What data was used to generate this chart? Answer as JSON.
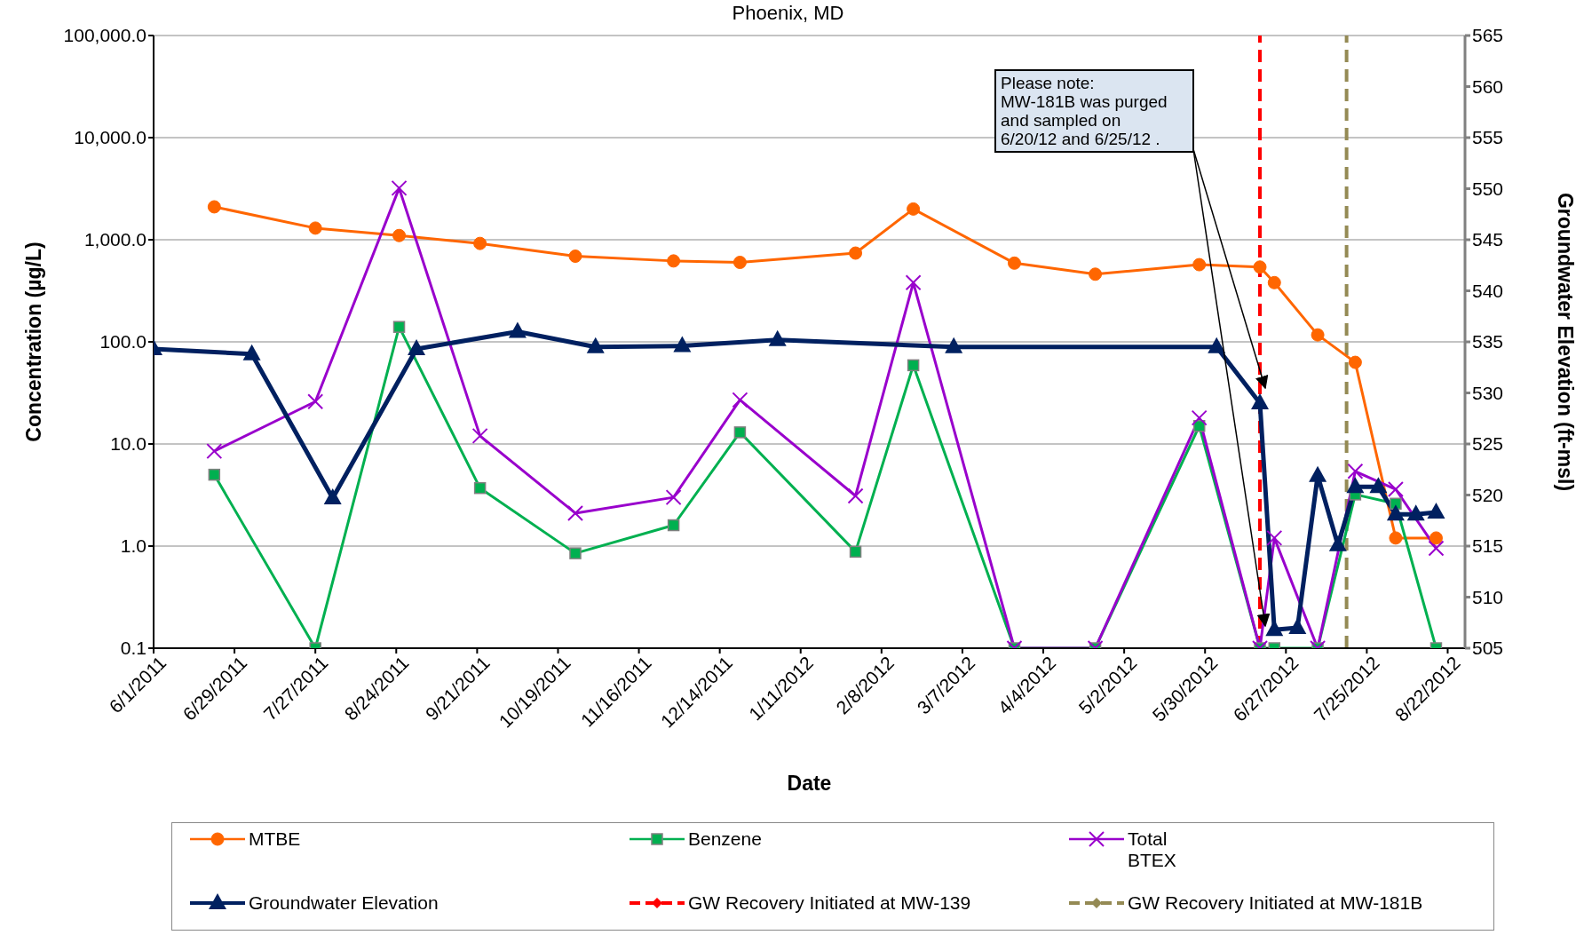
{
  "chart_data": {
    "type": "line",
    "title": "Phoenix, MD",
    "xlabel": "Date",
    "ylabel": "Concentration (µg/L)",
    "y2label": "Groundwater Elevation (ft-msl)",
    "log": "y",
    "grid": "y",
    "legend": "bottom",
    "xlim": [
      "2011-06-01",
      "2012-08-28"
    ],
    "xticks": [
      {
        "value": "2011-06-01",
        "label": "6/1/2011"
      },
      {
        "value": "2011-06-29",
        "label": "6/29/2011"
      },
      {
        "value": "2011-07-27",
        "label": "7/27/2011"
      },
      {
        "value": "2011-08-24",
        "label": "8/24/2011"
      },
      {
        "value": "2011-09-21",
        "label": "9/21/2011"
      },
      {
        "value": "2011-10-19",
        "label": "10/19/2011"
      },
      {
        "value": "2011-11-16",
        "label": "11/16/2011"
      },
      {
        "value": "2011-12-14",
        "label": "12/14/2011"
      },
      {
        "value": "2012-01-11",
        "label": "1/11/2012"
      },
      {
        "value": "2012-02-08",
        "label": "2/8/2012"
      },
      {
        "value": "2012-03-07",
        "label": "3/7/2012"
      },
      {
        "value": "2012-04-04",
        "label": "4/4/2012"
      },
      {
        "value": "2012-05-02",
        "label": "5/2/2012"
      },
      {
        "value": "2012-05-30",
        "label": "5/30/2012"
      },
      {
        "value": "2012-06-27",
        "label": "6/27/2012"
      },
      {
        "value": "2012-07-25",
        "label": "7/25/2012"
      },
      {
        "value": "2012-08-22",
        "label": "8/22/2012"
      }
    ],
    "ylim": [
      0.1,
      100000
    ],
    "yticks": [
      {
        "value": 0.1,
        "label": "0.1"
      },
      {
        "value": 1,
        "label": "1.0"
      },
      {
        "value": 10,
        "label": "10.0"
      },
      {
        "value": 100,
        "label": "100.0"
      },
      {
        "value": 1000,
        "label": "1,000.0"
      },
      {
        "value": 10000,
        "label": "10,000.0"
      },
      {
        "value": 100000,
        "label": "100,000.0"
      }
    ],
    "y2lim": [
      505,
      565
    ],
    "y2ticks": [
      505,
      510,
      515,
      520,
      525,
      530,
      535,
      540,
      545,
      550,
      555,
      560,
      565
    ],
    "series": [
      {
        "name": "MTBE",
        "color": "#ff6600",
        "marker": "circle",
        "x": [
          "2011-06-22",
          "2011-07-27",
          "2011-08-25",
          "2011-09-22",
          "2011-10-25",
          "2011-11-28",
          "2011-12-21",
          "2012-01-30",
          "2012-02-19",
          "2012-03-25",
          "2012-04-22",
          "2012-05-28",
          "2012-06-18",
          "2012-06-23",
          "2012-07-08",
          "2012-07-21",
          "2012-08-04",
          "2012-08-18"
        ],
        "values": [
          2100,
          1300,
          1100,
          920,
          690,
          620,
          600,
          740,
          2000,
          590,
          460,
          570,
          540,
          380,
          117,
          63,
          1.2,
          1.2
        ]
      },
      {
        "name": "Benzene",
        "color": "#00b050",
        "marker": "square",
        "x": [
          "2011-06-22",
          "2011-07-27",
          "2011-08-25",
          "2011-09-22",
          "2011-10-25",
          "2011-11-28",
          "2011-12-21",
          "2012-01-30",
          "2012-02-19",
          "2012-03-25",
          "2012-04-22",
          "2012-05-28",
          "2012-06-18",
          "2012-06-23",
          "2012-07-08",
          "2012-07-21",
          "2012-08-04",
          "2012-08-18"
        ],
        "values": [
          5,
          0.1,
          140,
          3.7,
          0.85,
          1.6,
          13,
          0.88,
          59,
          0.1,
          0.1,
          15,
          0.1,
          0.1,
          0.1,
          3.2,
          2.6,
          0.1
        ]
      },
      {
        "name": "Total BTEX",
        "color": "#9900cc",
        "marker": "cross",
        "x": [
          "2011-06-22",
          "2011-07-27",
          "2011-08-25",
          "2011-09-22",
          "2011-10-25",
          "2011-11-28",
          "2011-12-21",
          "2012-01-30",
          "2012-02-19",
          "2012-03-25",
          "2012-04-22",
          "2012-05-28",
          "2012-06-18",
          "2012-06-23",
          "2012-07-08",
          "2012-07-21",
          "2012-08-04",
          "2012-08-18"
        ],
        "values": [
          8.5,
          26,
          3200,
          12,
          2.1,
          3,
          27,
          3.1,
          380,
          0.1,
          0.1,
          18,
          0.1,
          1.2,
          0.1,
          5.4,
          3.6,
          0.95
        ]
      },
      {
        "name": "Groundwater Elevation",
        "color": "#002060",
        "marker": "triangle",
        "axis": "y2",
        "x": [
          "2011-06-01",
          "2011-07-05",
          "2011-08-02",
          "2011-08-31",
          "2011-10-05",
          "2011-11-01",
          "2011-12-01",
          "2012-01-03",
          "2012-03-04",
          "2012-06-03",
          "2012-06-18",
          "2012-06-23",
          "2012-07-01",
          "2012-07-08",
          "2012-07-15",
          "2012-07-21",
          "2012-07-29",
          "2012-08-04",
          "2012-08-11",
          "2012-08-18"
        ],
        "values": [
          534.3,
          533.8,
          519.7,
          534.3,
          536,
          534.5,
          534.6,
          535.2,
          534.5,
          534.5,
          529,
          506.8,
          507,
          521.9,
          515.1,
          520.8,
          520.8,
          518.1,
          518.1,
          518.3
        ]
      }
    ],
    "ref_lines": [
      {
        "axis": "x",
        "value": "2012-06-18",
        "label": "GW Recovery Initiated at MW-139",
        "color": "#ff0000",
        "line_style": "dashed"
      },
      {
        "axis": "x",
        "value": "2012-07-18",
        "label": "GW Recovery Initiated at MW-181B",
        "color": "#948a54",
        "line_style": "dashed"
      }
    ],
    "annotations": [
      "Please note:\nMW-181B was purged\nand sampled on\n6/20/12 and 6/25/12 ."
    ]
  }
}
